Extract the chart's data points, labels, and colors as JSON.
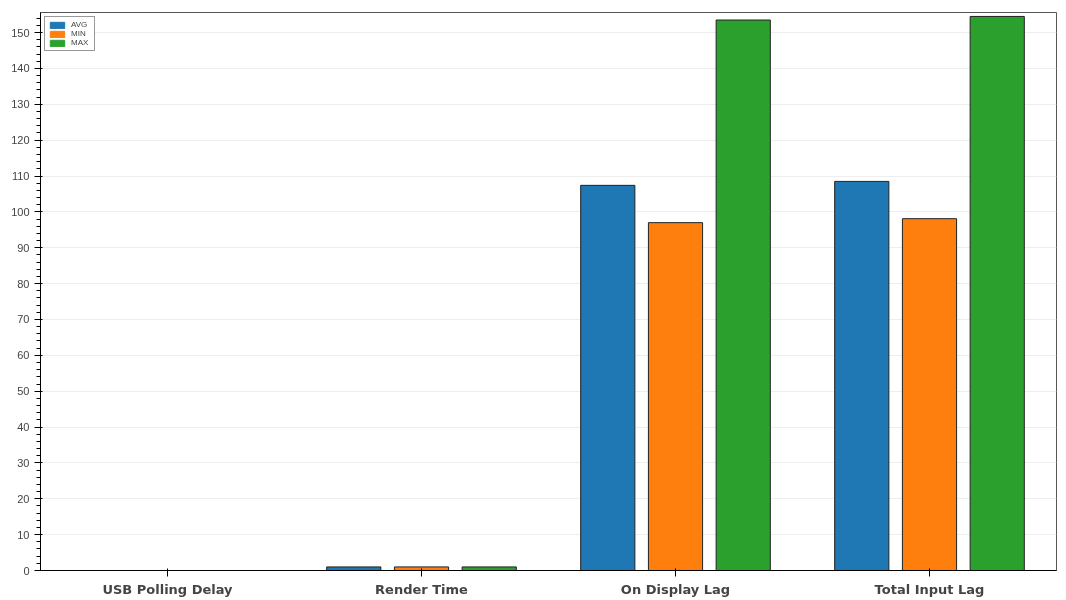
{
  "chart_data": {
    "type": "bar",
    "categories": [
      "USB Polling Delay",
      "Render Time",
      "On Display Lag",
      "Total Input Lag"
    ],
    "series": [
      {
        "name": "AVG",
        "color": "#1f77b4",
        "values": [
          0,
          1,
          107.4,
          108.5
        ]
      },
      {
        "name": "MIN",
        "color": "#ff7f0e",
        "values": [
          0,
          1,
          97,
          98.1
        ]
      },
      {
        "name": "MAX",
        "color": "#2ca02c",
        "values": [
          0,
          1,
          153.5,
          154.5
        ]
      }
    ],
    "ylim": [
      0,
      155.6
    ],
    "yticks": [
      0,
      10,
      20,
      30,
      40,
      50,
      60,
      70,
      80,
      90,
      100,
      110,
      120,
      130,
      140,
      150
    ],
    "grid": "y",
    "legend": "top left"
  }
}
